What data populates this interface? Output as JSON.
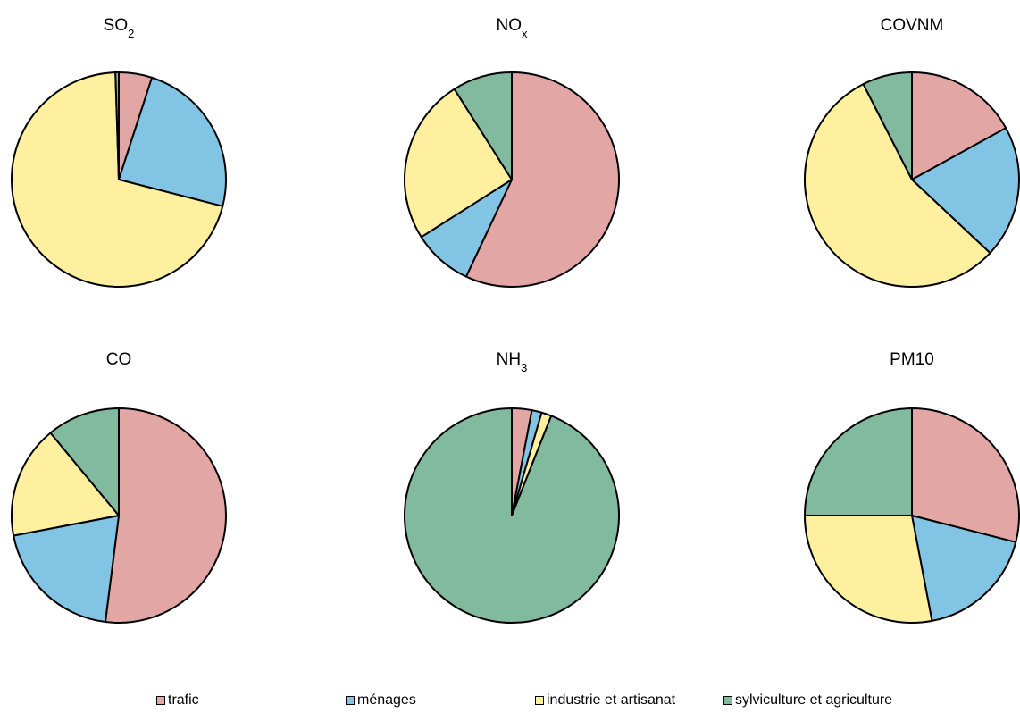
{
  "chart_data": {
    "type": "pie",
    "legend_position": "bottom",
    "categories": [
      "trafic",
      "ménages",
      "industrie et artisanat",
      "sylviculture et agriculture"
    ],
    "colors": [
      "#e2a7a5",
      "#82c4e4",
      "#fff0a0",
      "#82ba9f"
    ],
    "charts": [
      {
        "title_main": "SO",
        "title_sub": "2",
        "values": [
          5,
          24,
          70.5,
          0.5
        ]
      },
      {
        "title_main": "NO",
        "title_sub": "x",
        "values": [
          57,
          9,
          25,
          9
        ]
      },
      {
        "title_main": "COVNM",
        "title_sub": "",
        "values": [
          17,
          20,
          55.5,
          7.5
        ]
      },
      {
        "title_main": "CO",
        "title_sub": "",
        "values": [
          52,
          20,
          17,
          11
        ]
      },
      {
        "title_main": "NH",
        "title_sub": "3",
        "values": [
          3,
          1.5,
          1.5,
          94
        ]
      },
      {
        "title_main": "PM10",
        "title_sub": "",
        "values": [
          29,
          18,
          28,
          25
        ]
      }
    ]
  }
}
